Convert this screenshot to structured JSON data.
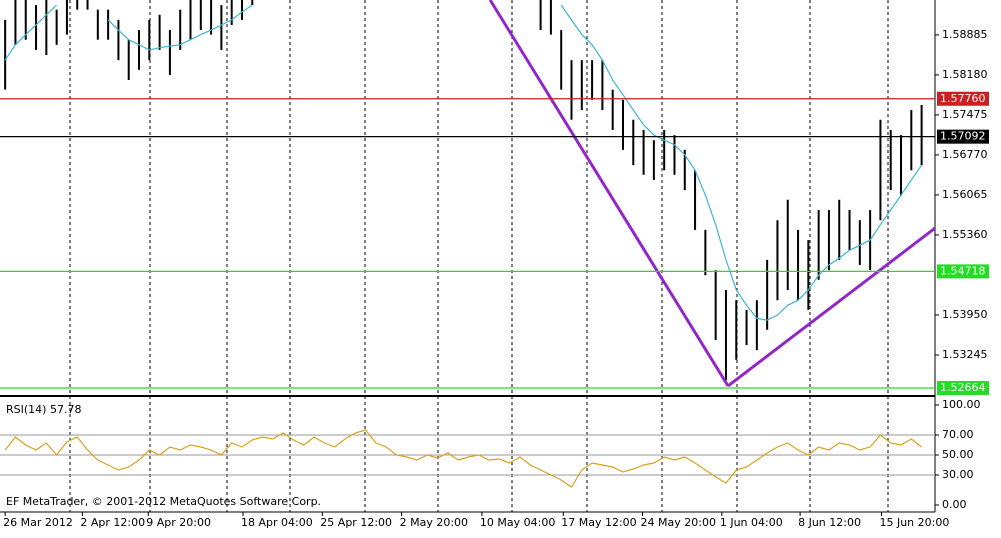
{
  "chart_data": [
    {
      "type": "ohlc",
      "x": [
        0,
        1,
        2,
        3,
        4,
        5,
        6,
        7,
        8,
        9,
        10,
        11,
        12,
        13,
        14,
        15,
        16,
        17,
        18,
        19,
        20,
        21,
        22,
        23,
        24,
        25,
        26,
        27,
        28,
        29,
        30,
        31,
        32,
        33,
        34,
        35,
        36,
        37,
        38,
        39,
        40,
        41,
        42,
        43,
        44,
        45,
        46,
        47,
        48,
        49,
        50,
        51,
        52,
        53,
        54,
        55,
        56,
        57,
        58,
        59,
        60,
        61,
        62,
        63,
        64,
        65,
        66,
        67,
        68,
        69,
        70,
        71,
        72,
        73,
        74,
        75,
        76,
        77,
        78,
        79,
        80,
        81,
        82,
        83,
        84,
        85,
        86,
        87,
        88,
        89
      ],
      "high": [
        1.5915,
        1.595,
        1.595,
        1.5941,
        1.595,
        1.5933,
        1.595,
        1.595,
        1.595,
        1.5933,
        1.5933,
        1.5915,
        1.588,
        1.5897,
        1.5915,
        1.5924,
        1.5897,
        1.5933,
        1.595,
        1.595,
        1.595,
        1.5941,
        1.595,
        1.595,
        1.595,
        null,
        null,
        null,
        null,
        null,
        null,
        null,
        null,
        null,
        null,
        null,
        null,
        null,
        null,
        null,
        null,
        null,
        null,
        null,
        null,
        null,
        null,
        null,
        null,
        null,
        null,
        null,
        1.595,
        1.595,
        1.5897,
        1.5844,
        1.5844,
        1.5844,
        1.5844,
        1.5792,
        1.5774,
        1.5739,
        1.5721,
        1.5703,
        1.5721,
        1.5712,
        1.5686,
        1.565,
        1.5545,
        1.5474,
        1.5439,
        1.5421,
        1.5404,
        1.5421,
        1.5492,
        1.5562,
        1.5598,
        1.5545,
        1.5527,
        1.558,
        1.558,
        1.5598,
        1.558,
        1.5562,
        1.558,
        1.5739,
        1.5721,
        1.5712,
        1.5756,
        1.5765
      ],
      "low": [
        1.5792,
        1.5871,
        1.588,
        1.5862,
        1.5853,
        1.5871,
        1.5889,
        1.5933,
        1.5933,
        1.588,
        1.588,
        1.5844,
        1.5809,
        1.5827,
        1.5844,
        1.5862,
        1.5818,
        1.5862,
        1.588,
        1.5897,
        1.5889,
        1.5862,
        1.5906,
        1.5915,
        1.5941,
        null,
        null,
        null,
        null,
        null,
        null,
        null,
        null,
        null,
        null,
        null,
        null,
        null,
        null,
        null,
        null,
        null,
        null,
        null,
        null,
        null,
        null,
        null,
        null,
        null,
        null,
        null,
        1.5897,
        1.5889,
        1.5792,
        1.5739,
        1.5756,
        1.5774,
        1.5756,
        1.5721,
        1.5686,
        1.5659,
        1.5642,
        1.5633,
        1.565,
        1.5642,
        1.5615,
        1.5545,
        1.5465,
        1.5351,
        1.528,
        1.5316,
        1.5342,
        1.5333,
        1.5369,
        1.5421,
        1.5439,
        1.5421,
        1.5404,
        1.5457,
        1.5474,
        1.5492,
        1.5509,
        1.5483,
        1.5474,
        1.5562,
        1.5615,
        1.5606,
        1.565,
        1.5659
      ],
      "bar_color": "#000000",
      "ma_values": [
        1.5844,
        1.5871,
        1.5889,
        1.5906,
        1.5924,
        1.5941,
        null,
        null,
        null,
        null,
        1.5915,
        1.5897,
        1.588,
        1.5871,
        1.5862,
        1.5866,
        1.5869,
        1.5871,
        1.588,
        1.5889,
        1.5897,
        1.5906,
        1.5915,
        1.5929,
        1.5941,
        null,
        null,
        null,
        null,
        null,
        null,
        null,
        null,
        null,
        null,
        null,
        null,
        null,
        null,
        null,
        null,
        null,
        null,
        null,
        null,
        null,
        null,
        null,
        null,
        null,
        null,
        null,
        null,
        null,
        1.5941,
        1.5915,
        1.5889,
        1.5871,
        1.5844,
        1.5809,
        1.5783,
        1.5756,
        1.573,
        1.5712,
        1.5703,
        1.5695,
        1.5677,
        1.565,
        1.5606,
        1.5554,
        1.5492,
        1.5439,
        1.5412,
        1.5389,
        1.5386,
        1.5395,
        1.5412,
        1.5421,
        1.5439,
        1.5465,
        1.5483,
        1.5495,
        1.5509,
        1.5518,
        1.5527,
        1.5554,
        1.558,
        1.5606,
        1.5633,
        1.5659
      ],
      "ma_color": "#3cb6d3",
      "trendline": {
        "color": "#9326c9",
        "x": [
          47.1,
          70.2,
          90.3
        ],
        "y": [
          1.595,
          1.527,
          1.5548
        ]
      },
      "levels": [
        {
          "value": 1.5776,
          "label": "1.57760",
          "color": "#cc1f1f",
          "text_color": "#ffffff"
        },
        {
          "value": 1.57092,
          "label": "1.57092",
          "color": "#000000",
          "text_color": "#ffffff"
        },
        {
          "value": 1.54718,
          "label": "1.54718",
          "color": "#22dd22",
          "text_color": "#ffffff"
        },
        {
          "value": 1.52664,
          "label": "1.52664",
          "color": "#22dd22",
          "text_color": "#ffffff"
        }
      ],
      "xlim": [
        -0.5,
        90.3
      ],
      "ylim": [
        1.5254,
        1.595
      ],
      "yticks": [
        1.58885,
        {
          "value": 1.5818,
          "label": "1.58180"
        },
        1.57475,
        {
          "value": 1.5677,
          "label": "1.56770"
        },
        1.56065,
        {
          "value": 1.5536,
          "label": "1.55360"
        },
        {
          "value": 1.5395,
          "label": "1.53950"
        },
        1.53245
      ],
      "footer": "EF MetaTrader, © 2001-2012 MetaQuotes Software Corp."
    },
    {
      "type": "line",
      "title": "RSI(14) 57.78",
      "x": [
        0,
        1,
        2,
        3,
        4,
        5,
        6,
        7,
        8,
        9,
        10,
        11,
        12,
        13,
        14,
        15,
        16,
        17,
        18,
        19,
        20,
        21,
        22,
        23,
        24,
        25,
        26,
        27,
        28,
        29,
        30,
        31,
        32,
        33,
        34,
        35,
        36,
        37,
        38,
        39,
        40,
        41,
        42,
        43,
        44,
        45,
        46,
        47,
        48,
        49,
        50,
        51,
        52,
        53,
        54,
        55,
        56,
        57,
        58,
        59,
        60,
        61,
        62,
        63,
        64,
        65,
        66,
        67,
        68,
        69,
        70,
        71,
        72,
        73,
        74,
        75,
        76,
        77,
        78,
        79,
        80,
        81,
        82,
        83,
        84,
        85,
        86,
        87,
        88,
        89
      ],
      "values": [
        55,
        68,
        60,
        55,
        62,
        50,
        63,
        68,
        55,
        45,
        40,
        35,
        38,
        45,
        55,
        50,
        58,
        55,
        60,
        58,
        55,
        50,
        62,
        58,
        65,
        68,
        66,
        72,
        65,
        60,
        68,
        62,
        58,
        66,
        72,
        75,
        62,
        58,
        50,
        48,
        45,
        50,
        47,
        52,
        45,
        48,
        50,
        45,
        46,
        42,
        48,
        40,
        35,
        30,
        25,
        18,
        35,
        42,
        40,
        38,
        33,
        36,
        40,
        42,
        48,
        45,
        48,
        42,
        35,
        28,
        22,
        35,
        38,
        45,
        52,
        58,
        62,
        55,
        50,
        58,
        55,
        62,
        60,
        55,
        58,
        70,
        62,
        60,
        66,
        58
      ],
      "color": "#d9a21c",
      "xlim": [
        -0.5,
        90.3
      ],
      "ylim": [
        0,
        100
      ],
      "yticks": [
        {
          "value": 100,
          "label": "100.00"
        },
        {
          "value": 70,
          "label": "70.00"
        },
        {
          "value": 50,
          "label": "50.00"
        },
        {
          "value": 30,
          "label": "30.00"
        },
        {
          "value": 0,
          "label": "0.00"
        }
      ],
      "xticks": [
        {
          "value": 0,
          "label": "26 Mar 2012"
        },
        {
          "value": 7.5,
          "label": "2 Apr 12:00"
        },
        {
          "value": 13.9,
          "label": "9 Apr 20:00"
        },
        {
          "value": 23.1,
          "label": "18 Apr 04:00"
        },
        {
          "value": 30.8,
          "label": "25 Apr 12:00"
        },
        {
          "value": 38.5,
          "label": "2 May 20:00"
        },
        {
          "value": 46.3,
          "label": "10 May 04:00"
        },
        {
          "value": 54.2,
          "label": "17 May 12:00"
        },
        {
          "value": 61.9,
          "label": "24 May 20:00"
        },
        {
          "value": 69.6,
          "label": "1 Jun 04:00"
        },
        {
          "value": 77.2,
          "label": "8 Jun 12:00"
        },
        {
          "value": 85.1,
          "label": "15 Jun 20:00"
        }
      ]
    }
  ]
}
